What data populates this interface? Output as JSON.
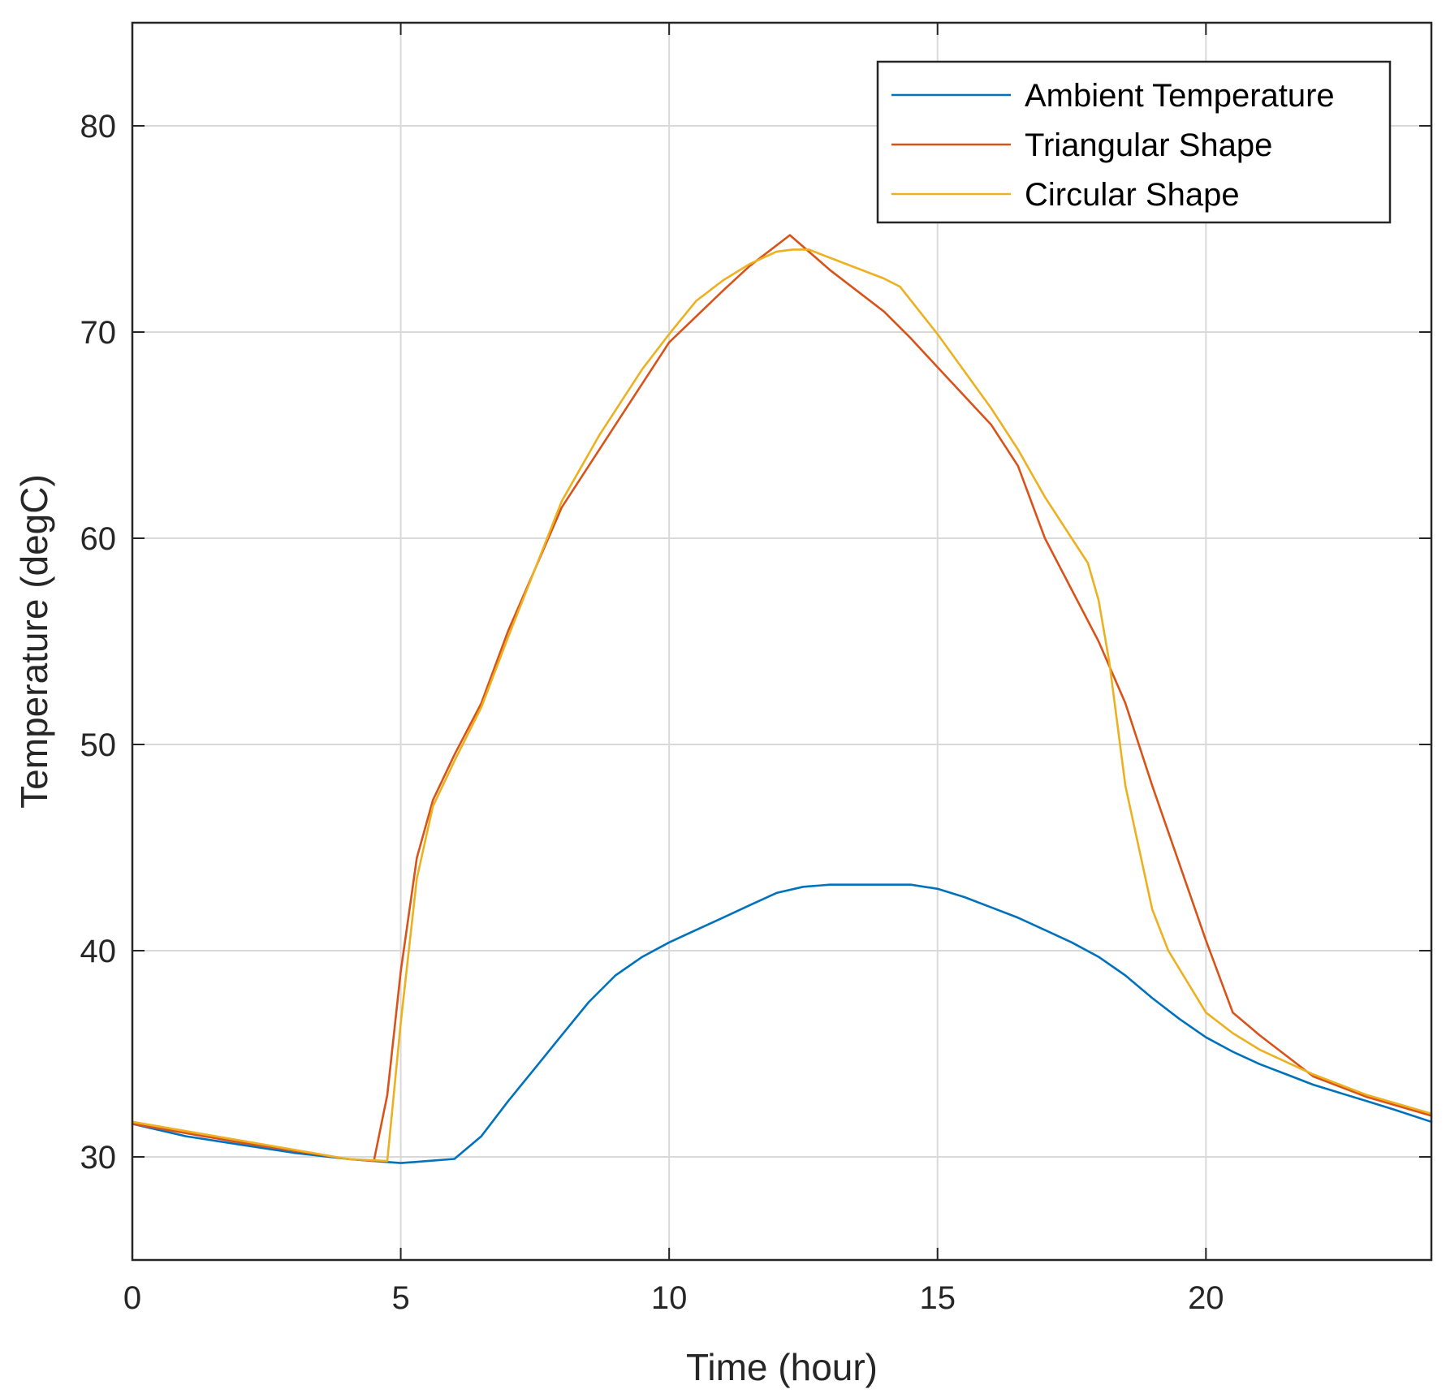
{
  "chart_data": {
    "type": "line",
    "title": "",
    "xlabel": "Time (hour)",
    "ylabel": "Temperature (degC)",
    "xlim": [
      0,
      24.2
    ],
    "ylim": [
      25,
      85
    ],
    "xticks": [
      0,
      5,
      10,
      15,
      20
    ],
    "yticks": [
      30,
      40,
      50,
      60,
      70,
      80
    ],
    "xtick_labels": [
      "0",
      "5",
      "10",
      "15",
      "20"
    ],
    "ytick_labels": [
      "30",
      "40",
      "50",
      "60",
      "70",
      "80"
    ],
    "grid": true,
    "legend_position": "top-right",
    "series": [
      {
        "name": "Ambient Temperature",
        "color": "#0072BD",
        "x": [
          0,
          1,
          2,
          3,
          4,
          4.5,
          5,
          5.5,
          6,
          6.5,
          7,
          7.5,
          8,
          8.5,
          9,
          9.5,
          10,
          10.5,
          11,
          11.5,
          12,
          12.5,
          13,
          13.5,
          14,
          14.5,
          15,
          15.5,
          16,
          16.5,
          17,
          17.5,
          18,
          18.5,
          19,
          19.5,
          20,
          20.5,
          21,
          21.5,
          22,
          22.5,
          23,
          23.5,
          24.2
        ],
        "y": [
          31.6,
          31.0,
          30.6,
          30.2,
          29.9,
          29.8,
          29.7,
          29.8,
          29.9,
          31.0,
          32.7,
          34.3,
          35.9,
          37.5,
          38.8,
          39.7,
          40.4,
          41.0,
          41.6,
          42.2,
          42.8,
          43.1,
          43.2,
          43.2,
          43.2,
          43.2,
          43.0,
          42.6,
          42.1,
          41.6,
          41.0,
          40.4,
          39.7,
          38.8,
          37.7,
          36.7,
          35.8,
          35.1,
          34.5,
          34.0,
          33.5,
          33.1,
          32.7,
          32.3,
          31.7
        ]
      },
      {
        "name": "Triangular Shape",
        "color": "#D95319",
        "x": [
          0,
          2,
          4,
          4.5,
          4.75,
          5,
          5.3,
          5.6,
          6,
          6.5,
          7,
          7.5,
          8,
          9,
          10,
          11,
          11.5,
          12.25,
          13,
          14,
          14.5,
          15,
          16,
          16.5,
          17,
          18,
          18.5,
          19,
          20,
          20.5,
          21,
          22,
          23,
          24.2
        ],
        "y": [
          31.6,
          30.7,
          29.9,
          29.8,
          33.0,
          39.0,
          44.5,
          47.3,
          49.5,
          52.0,
          55.5,
          58.5,
          61.5,
          65.5,
          69.5,
          72.0,
          73.2,
          74.7,
          73.0,
          71.0,
          69.7,
          68.3,
          65.5,
          63.5,
          60.0,
          55.0,
          52.0,
          48.0,
          40.5,
          37.0,
          35.9,
          33.9,
          32.9,
          32.0
        ]
      },
      {
        "name": "Circular Shape",
        "color": "#EDB120",
        "x": [
          0,
          2,
          4,
          4.75,
          5,
          5.3,
          5.6,
          6,
          6.5,
          7,
          7.5,
          8,
          8.7,
          9.5,
          10,
          10.5,
          11,
          11.5,
          12,
          12.3,
          12.6,
          13,
          14,
          14.3,
          15,
          16,
          16.5,
          17,
          17.5,
          17.8,
          18,
          18.2,
          18.5,
          19,
          19.3,
          20,
          20.5,
          21,
          22,
          23,
          24.2
        ],
        "y": [
          31.7,
          30.8,
          29.9,
          29.8,
          36.5,
          43.5,
          47.0,
          49.2,
          51.8,
          55.2,
          58.5,
          61.8,
          65.0,
          68.2,
          69.9,
          71.5,
          72.5,
          73.3,
          73.9,
          74.0,
          74.0,
          73.6,
          72.6,
          72.2,
          69.9,
          66.3,
          64.3,
          62.0,
          60.0,
          58.8,
          57.0,
          54.0,
          48.0,
          42.0,
          40.0,
          37.0,
          36.0,
          35.2,
          34.0,
          33.0,
          32.1
        ]
      }
    ]
  }
}
